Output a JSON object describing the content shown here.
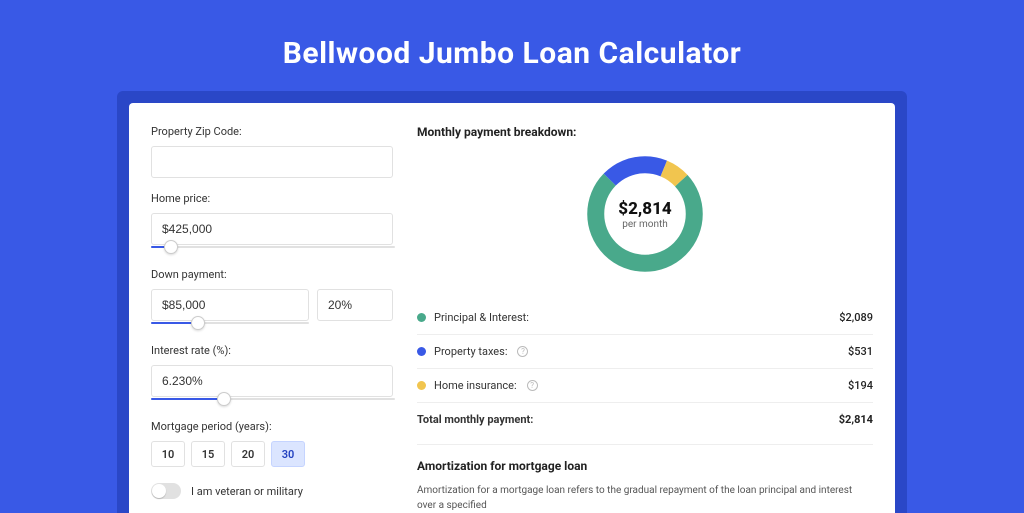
{
  "page": {
    "title": "Bellwood Jumbo Loan Calculator",
    "background_color": "#3959e6",
    "shadow_color": "#2a47c7"
  },
  "form": {
    "zip": {
      "label": "Property Zip Code:",
      "value": ""
    },
    "home_price": {
      "label": "Home price:",
      "value": "$425,000",
      "slider_fill_pct": 8
    },
    "down_payment": {
      "label": "Down payment:",
      "value": "$85,000",
      "pct_value": "20%",
      "slider_fill_pct": 30
    },
    "interest_rate": {
      "label": "Interest rate (%):",
      "value": "6.230%",
      "slider_fill_pct": 30
    },
    "mortgage_period": {
      "label": "Mortgage period (years):",
      "options": [
        "10",
        "15",
        "20",
        "30"
      ],
      "selected": "30"
    },
    "veteran": {
      "label": "I am veteran or military",
      "checked": false
    }
  },
  "breakdown": {
    "title": "Monthly payment breakdown:",
    "center_amount": "$2,814",
    "center_sub": "per month",
    "items": [
      {
        "label": "Principal & Interest:",
        "value": "$2,089",
        "color": "#49a98b",
        "info": false
      },
      {
        "label": "Property taxes:",
        "value": "$531",
        "color": "#3959e6",
        "info": true
      },
      {
        "label": "Home insurance:",
        "value": "$194",
        "color": "#f1c54f",
        "info": true
      }
    ],
    "total": {
      "label": "Total monthly payment:",
      "value": "$2,814"
    },
    "donut": {
      "segments": [
        {
          "color": "#49a98b",
          "fraction": 0.742
        },
        {
          "color": "#3959e6",
          "fraction": 0.189
        },
        {
          "color": "#f1c54f",
          "fraction": 0.069
        }
      ],
      "thickness": 17
    }
  },
  "amortization": {
    "title": "Amortization for mortgage loan",
    "text": "Amortization for a mortgage loan refers to the gradual repayment of the loan principal and interest over a specified"
  }
}
